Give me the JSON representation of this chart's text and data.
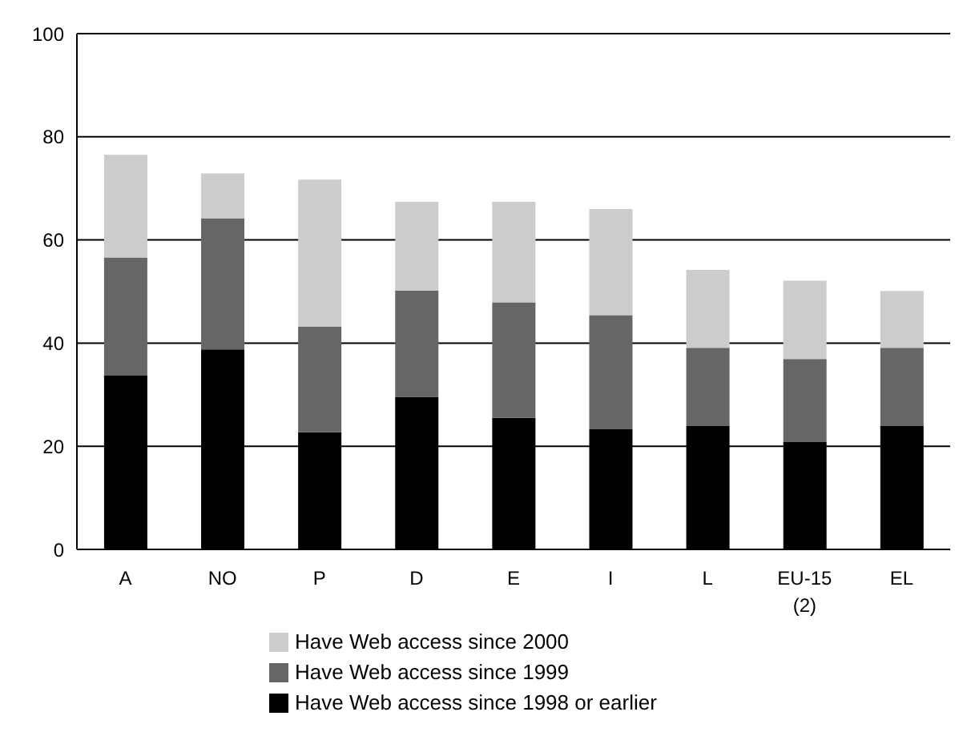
{
  "chart_data": {
    "type": "bar",
    "stacked": true,
    "categories": [
      "A",
      "NO",
      "P",
      "D",
      "E",
      "I",
      "L",
      "EU-15 (2)",
      "EL"
    ],
    "series": [
      {
        "name": "Have Web access since 1998 or earlier",
        "color": "#000000",
        "values": [
          33.7,
          38.8,
          22.7,
          29.6,
          25.5,
          23.3,
          23.9,
          20.8,
          23.9
        ]
      },
      {
        "name": "Have Web access since 1999",
        "color": "#666666",
        "values": [
          22.9,
          25.4,
          20.5,
          20.6,
          22.4,
          22.1,
          15.2,
          16.1,
          15.2
        ]
      },
      {
        "name": "Have Web access since 2000",
        "color": "#cccccc",
        "values": [
          19.9,
          8.7,
          28.5,
          17.2,
          19.5,
          20.6,
          15.1,
          15.2,
          11.0
        ]
      }
    ],
    "ylim": [
      0,
      100
    ],
    "yticks": [
      0,
      20,
      40,
      60,
      80,
      100
    ],
    "grid": "y",
    "legend": "bottom"
  }
}
